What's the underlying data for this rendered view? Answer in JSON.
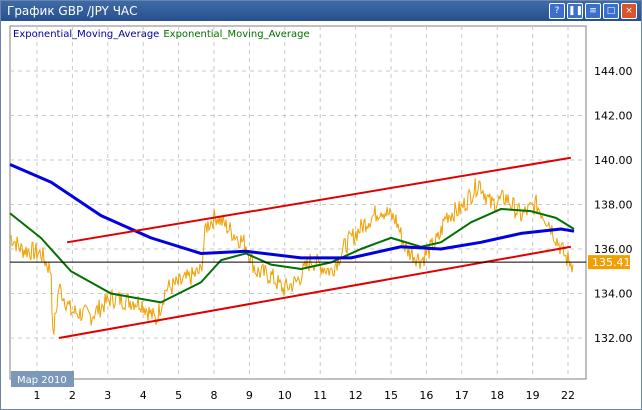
{
  "window": {
    "title": "График GBP /JPY  ЧАС",
    "buttons": [
      {
        "name": "help",
        "glyph": "?"
      },
      {
        "name": "pause",
        "glyph": "❚❚"
      },
      {
        "name": "menu",
        "glyph": "≡"
      },
      {
        "name": "maximize",
        "glyph": "□"
      },
      {
        "name": "close",
        "glyph": "×"
      }
    ]
  },
  "chart_data": {
    "type": "line",
    "legend": [
      {
        "text": "Exponential_Moving_Average",
        "color": "#00009c"
      },
      {
        "text": "Exponential_Moving_Average",
        "color": "#007000"
      }
    ],
    "period_label": "Мар 2010",
    "x_ticks": [
      "1",
      "2",
      "3",
      "4",
      "5",
      "8",
      "9",
      "10",
      "11",
      "12",
      "15",
      "16",
      "17",
      "18",
      "19",
      "22"
    ],
    "y_ticks": [
      132,
      134,
      136,
      138,
      140,
      142,
      144
    ],
    "ylim": [
      131,
      146
    ],
    "current_price": "135.41",
    "current_value": 135.41,
    "colors": {
      "price": "#f0a000",
      "ema_blue": "#0000e0",
      "ema_green": "#007000",
      "channel": "#e00000",
      "grid": "#c8c8c8"
    },
    "price": [
      [
        -0.76,
        136.6
      ],
      [
        -0.45,
        136.0
      ],
      [
        0.11,
        135.8
      ],
      [
        0.4,
        135.0
      ],
      [
        0.45,
        132.0
      ],
      [
        0.62,
        134.3
      ],
      [
        0.96,
        133.2
      ],
      [
        1.53,
        133.0
      ],
      [
        2.09,
        133.8
      ],
      [
        2.94,
        133.6
      ],
      [
        3.36,
        132.8
      ],
      [
        3.64,
        134.2
      ],
      [
        4.07,
        134.5
      ],
      [
        4.63,
        135.0
      ],
      [
        4.77,
        137.0
      ],
      [
        5.06,
        137.5
      ],
      [
        5.48,
        136.8
      ],
      [
        5.9,
        136.2
      ],
      [
        6.19,
        135.0
      ],
      [
        6.61,
        134.8
      ],
      [
        6.95,
        134.2
      ],
      [
        7.32,
        134.5
      ],
      [
        7.74,
        135.5
      ],
      [
        8.31,
        135.0
      ],
      [
        8.73,
        136.2
      ],
      [
        9.29,
        137.2
      ],
      [
        9.72,
        137.8
      ],
      [
        10.14,
        137.3
      ],
      [
        10.42,
        136.0
      ],
      [
        10.85,
        135.5
      ],
      [
        11.36,
        136.5
      ],
      [
        11.55,
        137.5
      ],
      [
        11.98,
        137.8
      ],
      [
        12.49,
        139.0
      ],
      [
        12.82,
        138.0
      ],
      [
        13.25,
        138.3
      ],
      [
        13.67,
        137.5
      ],
      [
        14.1,
        138.0
      ],
      [
        14.46,
        137.2
      ],
      [
        14.66,
        136.5
      ],
      [
        14.94,
        135.6
      ],
      [
        15.14,
        135.3
      ]
    ],
    "ema_blue": [
      [
        -0.76,
        139.8
      ],
      [
        0.4,
        139.0
      ],
      [
        1.81,
        137.5
      ],
      [
        3.22,
        136.5
      ],
      [
        4.63,
        135.8
      ],
      [
        5.9,
        135.9
      ],
      [
        7.46,
        135.6
      ],
      [
        8.87,
        135.6
      ],
      [
        10.28,
        136.1
      ],
      [
        11.41,
        136.0
      ],
      [
        12.54,
        136.3
      ],
      [
        13.67,
        136.7
      ],
      [
        14.8,
        136.9
      ],
      [
        15.17,
        136.8
      ]
    ],
    "ema_green": [
      [
        -0.76,
        137.6
      ],
      [
        0.11,
        136.5
      ],
      [
        0.96,
        135.0
      ],
      [
        2.09,
        134.0
      ],
      [
        3.5,
        133.6
      ],
      [
        4.63,
        134.5
      ],
      [
        5.2,
        135.5
      ],
      [
        5.9,
        135.8
      ],
      [
        6.61,
        135.3
      ],
      [
        7.46,
        135.1
      ],
      [
        8.31,
        135.4
      ],
      [
        9.15,
        136.0
      ],
      [
        10.0,
        136.5
      ],
      [
        10.85,
        136.1
      ],
      [
        11.41,
        136.3
      ],
      [
        12.26,
        137.2
      ],
      [
        13.11,
        137.8
      ],
      [
        13.95,
        137.7
      ],
      [
        14.66,
        137.4
      ],
      [
        15.17,
        136.9
      ]
    ],
    "channel_upper": [
      [
        0.85,
        136.3
      ],
      [
        15.08,
        140.1
      ]
    ],
    "channel_lower": [
      [
        0.62,
        132.0
      ],
      [
        15.08,
        136.1
      ]
    ]
  }
}
